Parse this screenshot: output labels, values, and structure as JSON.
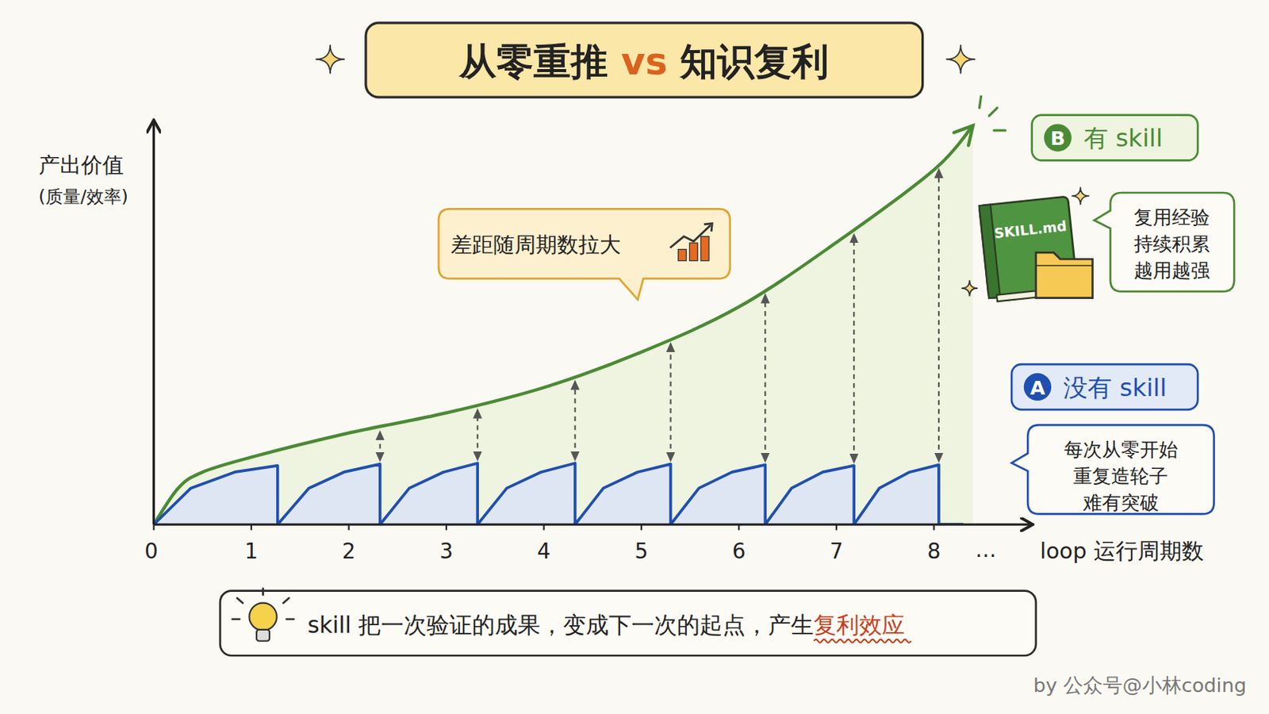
{
  "chart_data": {
    "type": "line",
    "title": [
      "从零重推",
      " vs ",
      "知识复利"
    ],
    "y_label": [
      "产出价值",
      "(质量/效率)"
    ],
    "x_label": "loop 运行周期数",
    "x_more": "…",
    "xlim": [
      0,
      9
    ],
    "ylim": [
      0,
      100
    ],
    "xticks": [
      0,
      1,
      2,
      3,
      4,
      5,
      6,
      7,
      8
    ],
    "tick_labels": "x",
    "annotation": "差距随周期数拉大",
    "note": [
      "skill 把一次验证的成果，变成下一次的起点，产生",
      "复利效应"
    ],
    "credit": "by 公众号@小林coding",
    "series": [
      {
        "name": "有 skill",
        "badge": "B",
        "color": "#4a8a34",
        "icon_label": "SKILL.md",
        "notes": [
          "复用经验",
          "持续积累",
          "越用越强"
        ],
        "x": [
          0,
          0.25,
          0.5,
          1,
          2,
          3,
          4,
          5,
          6,
          7,
          8,
          8.4
        ],
        "values": [
          0,
          9,
          13,
          16.7,
          22.7,
          27.7,
          34,
          42.8,
          54,
          70,
          88,
          99
        ]
      },
      {
        "name": "没有 skill",
        "badge": "A",
        "color": "#1f4fb0",
        "notes": [
          "每次从零开始",
          "重复造轮子",
          "难有突破"
        ],
        "x": [
          0,
          0.38,
          0.83,
          1.27,
          1.27,
          1.59,
          1.95,
          2.32,
          2.32,
          2.62,
          2.97,
          3.32,
          3.32,
          3.62,
          3.97,
          4.32,
          4.32,
          4.61,
          4.96,
          5.3,
          5.3,
          5.59,
          5.93,
          6.27,
          6.27,
          6.54,
          6.86,
          7.18,
          7.18,
          7.44,
          7.75,
          8.05,
          8.05,
          8.3
        ],
        "values": [
          0,
          9,
          13,
          14.6,
          0,
          9,
          13,
          15,
          0,
          9,
          13,
          15.2,
          0,
          9,
          13,
          15.2,
          0,
          9,
          13,
          15,
          0,
          9,
          13,
          14.8,
          0,
          9,
          13,
          14.6,
          0,
          9,
          13,
          14.8,
          0,
          0
        ]
      }
    ]
  }
}
